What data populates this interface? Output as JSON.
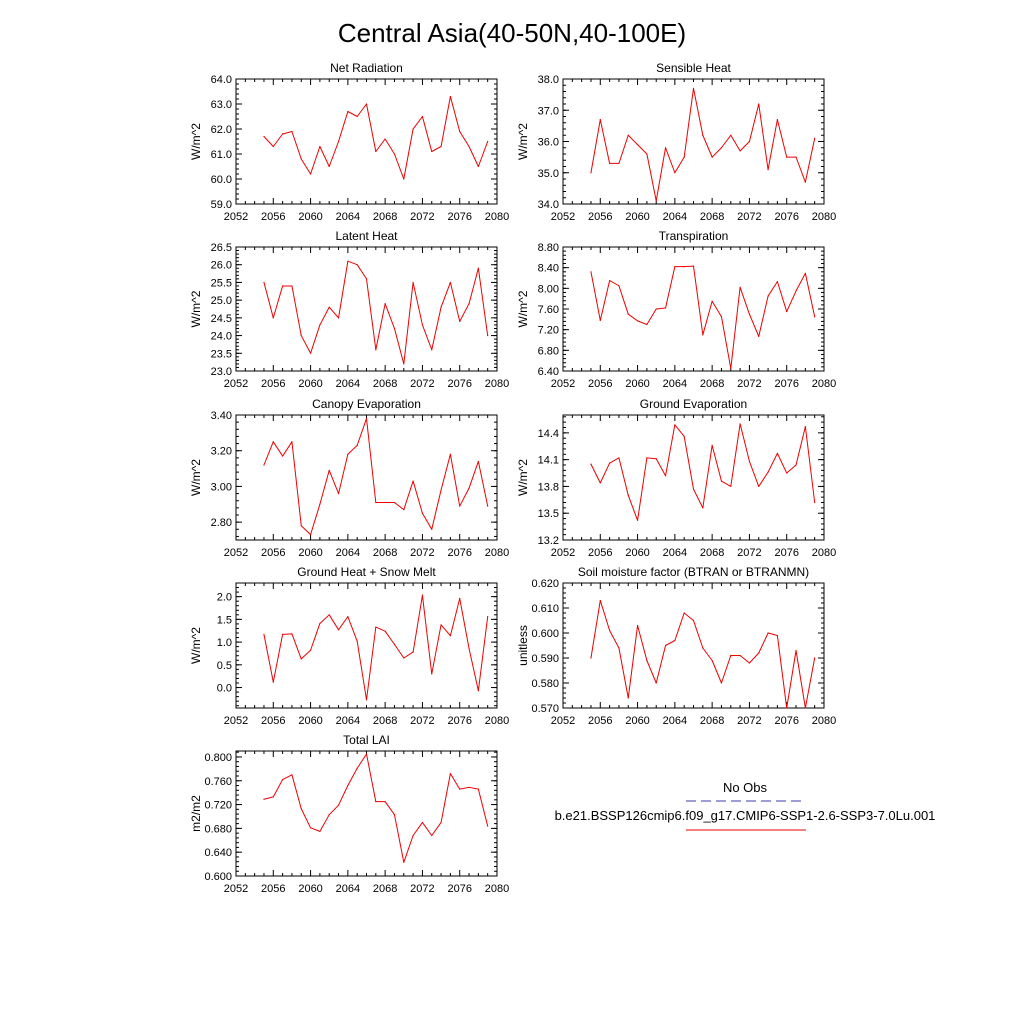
{
  "figure": {
    "title": "Central Asia(40-50N,40-100E)",
    "legend": {
      "entries": [
        {
          "label": "No Obs",
          "color": "#3b3bb0",
          "dash": true
        },
        {
          "label": "b.e21.BSSP126cmip6.f09_g17.CMIP6-SSP1-2.6-SSP3-7.0Lu.001",
          "color": "#ee0000",
          "dash": false
        }
      ]
    }
  },
  "chart_data": [
    {
      "type": "line",
      "title": "Net Radiation",
      "ylabel": "W/m^2",
      "xlim": [
        2052,
        2080
      ],
      "ylim": [
        59.0,
        64.0
      ],
      "xticks": [
        2052,
        2056,
        2060,
        2064,
        2068,
        2072,
        2076,
        2080
      ],
      "yticks": [
        59.0,
        60.0,
        61.0,
        62.0,
        63.0,
        64.0
      ],
      "ytick_labels": [
        "59.0",
        "60.0",
        "61.0",
        "62.0",
        "63.0",
        "64.0"
      ],
      "yminor": 0.2,
      "series": [
        {
          "color": "#ee0000",
          "x": [
            2055,
            2056,
            2057,
            2058,
            2059,
            2060,
            2061,
            2062,
            2063,
            2064,
            2065,
            2066,
            2067,
            2068,
            2069,
            2070,
            2071,
            2072,
            2073,
            2074,
            2075,
            2076,
            2077,
            2078,
            2079
          ],
          "y": [
            61.7,
            61.3,
            61.8,
            61.9,
            60.8,
            60.2,
            61.3,
            60.5,
            61.5,
            62.7,
            62.5,
            63.0,
            61.1,
            61.6,
            61.0,
            60.0,
            62.0,
            62.5,
            61.1,
            61.3,
            63.3,
            61.9,
            61.3,
            60.5,
            61.5
          ]
        }
      ]
    },
    {
      "type": "line",
      "title": "Sensible Heat",
      "ylabel": "W/m^2",
      "xlim": [
        2052,
        2080
      ],
      "ylim": [
        34.0,
        38.0
      ],
      "xticks": [
        2052,
        2056,
        2060,
        2064,
        2068,
        2072,
        2076,
        2080
      ],
      "yticks": [
        34.0,
        35.0,
        36.0,
        37.0,
        38.0
      ],
      "ytick_labels": [
        "34.0",
        "35.0",
        "36.0",
        "37.0",
        "38.0"
      ],
      "yminor": 0.2,
      "series": [
        {
          "color": "#ee0000",
          "x": [
            2055,
            2056,
            2057,
            2058,
            2059,
            2060,
            2061,
            2062,
            2063,
            2064,
            2065,
            2066,
            2067,
            2068,
            2069,
            2070,
            2071,
            2072,
            2073,
            2074,
            2075,
            2076,
            2077,
            2078,
            2079
          ],
          "y": [
            35.0,
            36.7,
            35.3,
            35.3,
            36.2,
            35.9,
            35.6,
            34.1,
            35.8,
            35.0,
            35.5,
            37.7,
            36.2,
            35.5,
            35.8,
            36.2,
            35.7,
            36.0,
            37.2,
            35.1,
            36.7,
            35.5,
            35.5,
            34.7,
            36.1
          ]
        }
      ]
    },
    {
      "type": "line",
      "title": "Latent Heat",
      "ylabel": "W/m^2",
      "xlim": [
        2052,
        2080
      ],
      "ylim": [
        23.0,
        26.5
      ],
      "xticks": [
        2052,
        2056,
        2060,
        2064,
        2068,
        2072,
        2076,
        2080
      ],
      "yticks": [
        23.0,
        23.5,
        24.0,
        24.5,
        25.0,
        25.5,
        26.0,
        26.5
      ],
      "ytick_labels": [
        "23.0",
        "23.5",
        "24.0",
        "24.5",
        "25.0",
        "25.5",
        "26.0",
        "26.5"
      ],
      "yminor": 0.1,
      "series": [
        {
          "color": "#ee0000",
          "x": [
            2055,
            2056,
            2057,
            2058,
            2059,
            2060,
            2061,
            2062,
            2063,
            2064,
            2065,
            2066,
            2067,
            2068,
            2069,
            2070,
            2071,
            2072,
            2073,
            2074,
            2075,
            2076,
            2077,
            2078,
            2079
          ],
          "y": [
            25.5,
            24.5,
            25.4,
            25.4,
            24.0,
            23.5,
            24.3,
            24.8,
            24.5,
            26.1,
            26.0,
            25.6,
            23.6,
            24.9,
            24.2,
            23.2,
            25.5,
            24.3,
            23.6,
            24.8,
            25.5,
            24.4,
            24.9,
            25.9,
            24.0
          ]
        }
      ]
    },
    {
      "type": "line",
      "title": "Transpiration",
      "ylabel": "W/m^2",
      "xlim": [
        2052,
        2080
      ],
      "ylim": [
        6.4,
        8.8
      ],
      "xticks": [
        2052,
        2056,
        2060,
        2064,
        2068,
        2072,
        2076,
        2080
      ],
      "yticks": [
        6.4,
        6.8,
        7.2,
        7.6,
        8.0,
        8.4,
        8.8
      ],
      "ytick_labels": [
        "6.40",
        "6.80",
        "7.20",
        "7.60",
        "8.00",
        "8.40",
        "8.80"
      ],
      "yminor": 0.08,
      "series": [
        {
          "color": "#ee0000",
          "x": [
            2055,
            2056,
            2057,
            2058,
            2059,
            2060,
            2061,
            2062,
            2063,
            2064,
            2065,
            2066,
            2067,
            2068,
            2069,
            2070,
            2071,
            2072,
            2073,
            2074,
            2075,
            2076,
            2077,
            2078,
            2079
          ],
          "y": [
            8.32,
            7.38,
            8.15,
            8.05,
            7.5,
            7.37,
            7.3,
            7.6,
            7.62,
            8.42,
            8.42,
            8.43,
            7.1,
            7.75,
            7.45,
            6.45,
            8.02,
            7.5,
            7.07,
            7.85,
            8.13,
            7.55,
            7.95,
            8.29,
            7.45
          ]
        }
      ]
    },
    {
      "type": "line",
      "title": "Canopy Evaporation",
      "ylabel": "W/m^2",
      "xlim": [
        2052,
        2080
      ],
      "ylim": [
        2.7,
        3.4
      ],
      "xticks": [
        2052,
        2056,
        2060,
        2064,
        2068,
        2072,
        2076,
        2080
      ],
      "yticks": [
        2.8,
        3.0,
        3.2,
        3.4
      ],
      "ytick_labels": [
        "2.80",
        "3.00",
        "3.20",
        "3.40"
      ],
      "yminor": 0.04,
      "series": [
        {
          "color": "#ee0000",
          "x": [
            2055,
            2056,
            2057,
            2058,
            2059,
            2060,
            2061,
            2062,
            2063,
            2064,
            2065,
            2066,
            2067,
            2068,
            2069,
            2070,
            2071,
            2072,
            2073,
            2074,
            2075,
            2076,
            2077,
            2078,
            2079
          ],
          "y": [
            3.12,
            3.25,
            3.17,
            3.25,
            2.78,
            2.73,
            2.9,
            3.09,
            2.96,
            3.18,
            3.23,
            3.38,
            2.91,
            2.91,
            2.91,
            2.87,
            3.03,
            2.85,
            2.76,
            2.98,
            3.18,
            2.89,
            2.99,
            3.14,
            2.89
          ]
        }
      ]
    },
    {
      "type": "line",
      "title": "Ground Evaporation",
      "ylabel": "W/m^2",
      "xlim": [
        2052,
        2080
      ],
      "ylim": [
        13.2,
        14.6
      ],
      "xticks": [
        2052,
        2056,
        2060,
        2064,
        2068,
        2072,
        2076,
        2080
      ],
      "yticks": [
        13.2,
        13.5,
        13.8,
        14.1,
        14.4
      ],
      "ytick_labels": [
        "13.2",
        "13.5",
        "13.8",
        "14.1",
        "14.4"
      ],
      "yminor": 0.06,
      "series": [
        {
          "color": "#ee0000",
          "x": [
            2055,
            2056,
            2057,
            2058,
            2059,
            2060,
            2061,
            2062,
            2063,
            2064,
            2065,
            2066,
            2067,
            2068,
            2069,
            2070,
            2071,
            2072,
            2073,
            2074,
            2075,
            2076,
            2077,
            2078,
            2079
          ],
          "y": [
            14.05,
            13.84,
            14.06,
            14.12,
            13.7,
            13.42,
            14.12,
            14.11,
            13.92,
            14.49,
            14.36,
            13.77,
            13.56,
            14.26,
            13.86,
            13.8,
            14.5,
            14.08,
            13.8,
            13.96,
            14.17,
            13.95,
            14.04,
            14.47,
            13.62
          ]
        }
      ]
    },
    {
      "type": "line",
      "title": "Ground Heat + Snow Melt",
      "ylabel": "W/m^2",
      "xlim": [
        2052,
        2080
      ],
      "ylim": [
        -0.45,
        2.3
      ],
      "xticks": [
        2052,
        2056,
        2060,
        2064,
        2068,
        2072,
        2076,
        2080
      ],
      "yticks": [
        0.0,
        0.5,
        1.0,
        1.5,
        2.0
      ],
      "ytick_labels": [
        "0.0",
        "0.5",
        "1.0",
        "1.5",
        "2.0"
      ],
      "yminor": 0.1,
      "series": [
        {
          "color": "#ee0000",
          "x": [
            2055,
            2056,
            2057,
            2058,
            2059,
            2060,
            2061,
            2062,
            2063,
            2064,
            2065,
            2066,
            2067,
            2068,
            2069,
            2070,
            2071,
            2072,
            2073,
            2074,
            2075,
            2076,
            2077,
            2078,
            2079
          ],
          "y": [
            1.17,
            0.12,
            1.17,
            1.18,
            0.63,
            0.82,
            1.41,
            1.6,
            1.27,
            1.56,
            1.02,
            -0.27,
            1.33,
            1.24,
            0.95,
            0.65,
            0.78,
            2.03,
            0.3,
            1.38,
            1.14,
            1.96,
            0.86,
            -0.07,
            1.56
          ]
        }
      ]
    },
    {
      "type": "line",
      "title": "Soil moisture factor (BTRAN or BTRANMN)",
      "ylabel": "unitless",
      "xlim": [
        2052,
        2080
      ],
      "ylim": [
        0.57,
        0.62
      ],
      "xticks": [
        2052,
        2056,
        2060,
        2064,
        2068,
        2072,
        2076,
        2080
      ],
      "yticks": [
        0.57,
        0.58,
        0.59,
        0.6,
        0.61,
        0.62
      ],
      "ytick_labels": [
        "0.570",
        "0.580",
        "0.590",
        "0.600",
        "0.610",
        "0.620"
      ],
      "yminor": 0.002,
      "series": [
        {
          "color": "#ee0000",
          "x": [
            2055,
            2056,
            2057,
            2058,
            2059,
            2060,
            2061,
            2062,
            2063,
            2064,
            2065,
            2066,
            2067,
            2068,
            2069,
            2070,
            2071,
            2072,
            2073,
            2074,
            2075,
            2076,
            2077,
            2078,
            2079
          ],
          "y": [
            0.59,
            0.613,
            0.601,
            0.594,
            0.574,
            0.603,
            0.589,
            0.58,
            0.595,
            0.597,
            0.608,
            0.605,
            0.594,
            0.589,
            0.58,
            0.591,
            0.591,
            0.588,
            0.592,
            0.6,
            0.599,
            0.57,
            0.593,
            0.57,
            0.59
          ]
        }
      ]
    },
    {
      "type": "line",
      "title": "Total LAI",
      "ylabel": "m2/m2",
      "xlim": [
        2052,
        2080
      ],
      "ylim": [
        0.6,
        0.81
      ],
      "xticks": [
        2052,
        2056,
        2060,
        2064,
        2068,
        2072,
        2076,
        2080
      ],
      "yticks": [
        0.6,
        0.64,
        0.68,
        0.72,
        0.76,
        0.8
      ],
      "ytick_labels": [
        "0.600",
        "0.640",
        "0.680",
        "0.720",
        "0.760",
        "0.800"
      ],
      "yminor": 0.008,
      "series": [
        {
          "color": "#ee0000",
          "x": [
            2055,
            2056,
            2057,
            2058,
            2059,
            2060,
            2061,
            2062,
            2063,
            2064,
            2065,
            2066,
            2067,
            2068,
            2069,
            2070,
            2071,
            2072,
            2073,
            2074,
            2075,
            2076,
            2077,
            2078,
            2079
          ],
          "y": [
            0.729,
            0.733,
            0.762,
            0.77,
            0.713,
            0.681,
            0.675,
            0.703,
            0.719,
            0.752,
            0.781,
            0.805,
            0.725,
            0.725,
            0.703,
            0.623,
            0.668,
            0.69,
            0.668,
            0.69,
            0.772,
            0.746,
            0.749,
            0.746,
            0.684
          ]
        }
      ]
    }
  ]
}
